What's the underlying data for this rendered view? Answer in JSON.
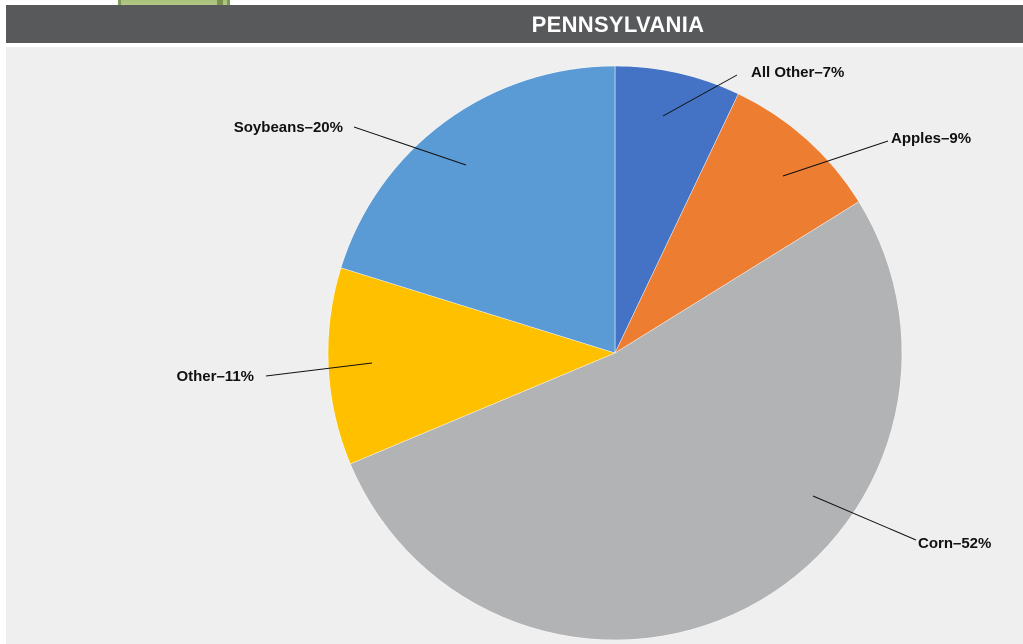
{
  "page_title": "PENNSYLVANIA",
  "chart_data": {
    "type": "pie",
    "title": "",
    "start_angle_deg": 0,
    "direction": "clockwise",
    "slices": [
      {
        "label": "All Other–7%",
        "category": "All Other",
        "value": 7,
        "color": "#4472c4"
      },
      {
        "label": "Apples–9%",
        "category": "Apples",
        "value": 9,
        "color": "#ed7d31"
      },
      {
        "label": "Corn–52%",
        "category": "Corn",
        "value": 52,
        "color": "#b1b3b5"
      },
      {
        "label": "Other–11%",
        "category": "Other",
        "value": 11,
        "color": "#ffc000"
      },
      {
        "label": "Soybeans–20%",
        "category": "Soybeans",
        "value": 20,
        "color": "#5b9bd5"
      }
    ],
    "legend": "none",
    "labels": "outside with leader lines"
  }
}
